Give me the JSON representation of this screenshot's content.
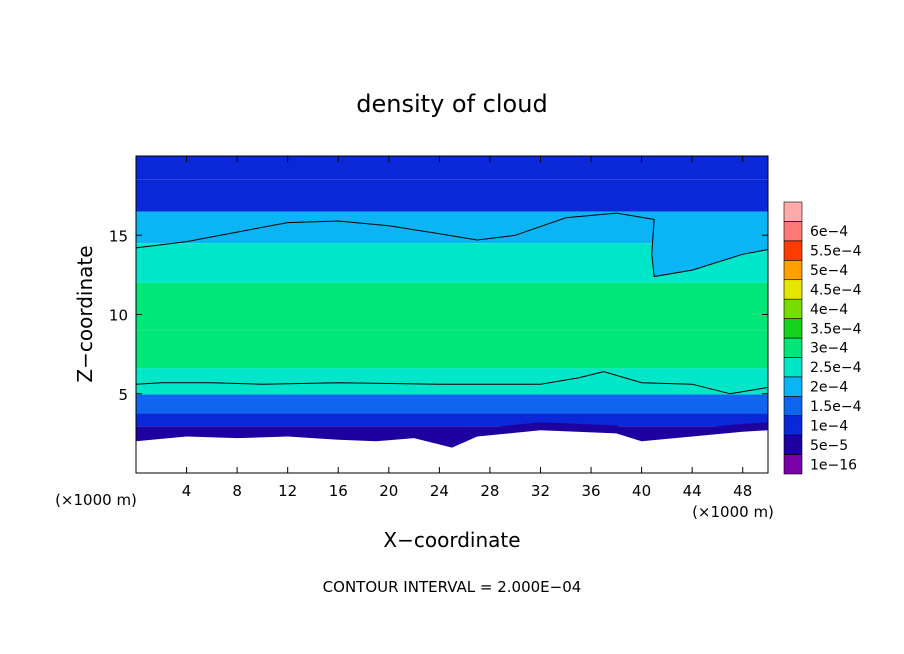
{
  "chart_data": {
    "type": "heatmap",
    "title": "density of cloud",
    "xlabel": "X−coordinate",
    "ylabel": "Z−coordinate",
    "x_unit": "(×1000 m)",
    "y_unit": "(×1000 m)",
    "xlim": [
      0,
      50
    ],
    "ylim": [
      0,
      20
    ],
    "x_ticks": [
      4,
      8,
      12,
      16,
      20,
      24,
      28,
      32,
      36,
      40,
      44,
      48
    ],
    "y_ticks": [
      5,
      10,
      15
    ],
    "colorbar": {
      "labels": [
        "1e−16",
        "5e−5",
        "1e−4",
        "1.5e−4",
        "2e−4",
        "2.5e−4",
        "3e−4",
        "3.5e−4",
        "4e−4",
        "4.5e−4",
        "5e−4",
        "5.5e−4",
        "6e−4"
      ],
      "values": [
        1e-16,
        5e-05,
        0.0001,
        0.00015,
        0.0002,
        0.00025,
        0.0003,
        0.00035,
        0.0004,
        0.00045,
        0.0005,
        0.00055,
        0.0006
      ],
      "colors": [
        "#7a00a8",
        "#1e00a0",
        "#0a28d8",
        "#0f64f0",
        "#0ab4f5",
        "#00e6c8",
        "#00e678",
        "#14d21e",
        "#78dc00",
        "#e6e600",
        "#ffa000",
        "#ff3c00",
        "#ff7878",
        "#ffaaaa"
      ]
    },
    "contour_level": 0.0002,
    "contour_line_upper": [
      [
        0,
        14.2
      ],
      [
        4,
        14.6
      ],
      [
        8,
        15.2
      ],
      [
        12,
        15.8
      ],
      [
        16,
        15.9
      ],
      [
        20,
        15.6
      ],
      [
        24,
        15.1
      ],
      [
        27,
        14.7
      ],
      [
        30,
        15.0
      ],
      [
        34,
        16.1
      ],
      [
        38,
        16.4
      ],
      [
        41,
        16.0
      ],
      [
        40.8,
        13.8
      ],
      [
        41,
        12.4
      ],
      [
        44,
        12.8
      ],
      [
        48,
        13.8
      ],
      [
        50,
        14.1
      ]
    ],
    "contour_line_lower": [
      [
        0,
        5.6
      ],
      [
        2,
        5.7
      ],
      [
        6,
        5.7
      ],
      [
        10,
        5.6
      ],
      [
        16,
        5.7
      ],
      [
        24,
        5.6
      ],
      [
        32,
        5.6
      ],
      [
        35,
        6.0
      ],
      [
        37,
        6.4
      ],
      [
        40,
        5.7
      ],
      [
        44,
        5.6
      ],
      [
        47,
        5.0
      ],
      [
        50,
        5.4
      ]
    ],
    "cloud_base": [
      [
        0,
        2.0
      ],
      [
        4,
        2.3
      ],
      [
        8,
        2.2
      ],
      [
        12,
        2.3
      ],
      [
        16,
        2.1
      ],
      [
        19,
        2.0
      ],
      [
        22,
        2.2
      ],
      [
        25,
        1.6
      ],
      [
        27,
        2.3
      ],
      [
        32,
        2.7
      ],
      [
        38,
        2.5
      ],
      [
        40,
        2.0
      ],
      [
        44,
        2.3
      ],
      [
        48,
        2.6
      ],
      [
        50,
        2.7
      ]
    ],
    "field_levels": [
      {
        "z": 19.5,
        "value": 5e-05
      },
      {
        "z": 17.5,
        "value": 8e-05
      },
      {
        "z": 15.5,
        "value": 0.00016
      },
      {
        "z": 13.5,
        "value": 0.00024
      },
      {
        "z": 10.5,
        "value": 0.000275
      },
      {
        "z": 7.5,
        "value": 0.00025
      },
      {
        "z": 5.7,
        "value": 0.0002
      },
      {
        "z": 4.2,
        "value": 0.00012
      },
      {
        "z": 3.3,
        "value": 7e-05
      },
      {
        "z": 2.6,
        "value": 4e-05
      }
    ],
    "contour_interval_note": "CONTOUR INTERVAL = 2.000E−04"
  }
}
